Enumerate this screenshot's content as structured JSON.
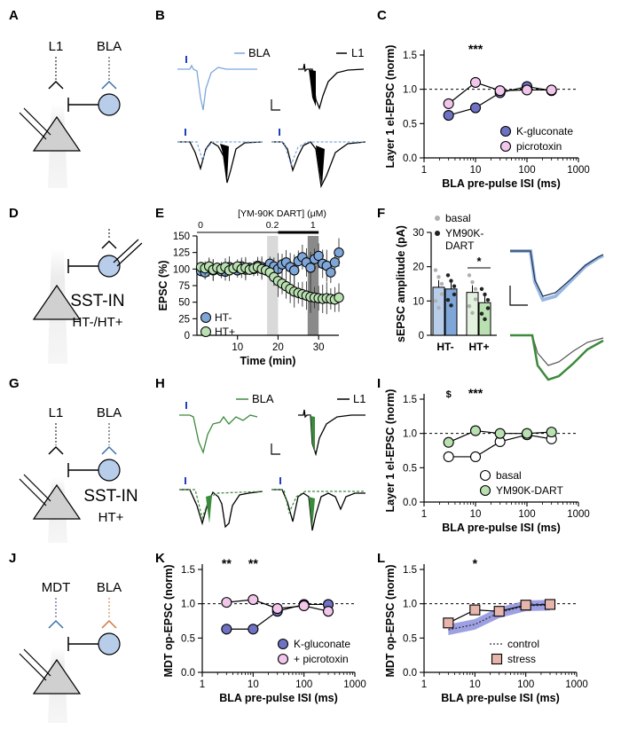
{
  "panels": {
    "A": "A",
    "B": "B",
    "C": "C",
    "D": "D",
    "E": "E",
    "F": "F",
    "G": "G",
    "H": "H",
    "I": "I",
    "J": "J",
    "K": "K",
    "L": "L"
  },
  "schematics": {
    "a": {
      "top_left": "L1",
      "top_right": "BLA"
    },
    "d": {
      "line1": "SST-IN",
      "line2": "HT-/HT+"
    },
    "g": {
      "top_left": "L1",
      "top_right": "BLA",
      "line1": "SST-IN",
      "line2": "HT+"
    },
    "j": {
      "top_left": "MDT",
      "top_right": "BLA"
    }
  },
  "traces": {
    "b": {
      "bla": "BLA",
      "l1": "L1"
    },
    "h": {
      "bla": "BLA",
      "l1": "L1"
    }
  },
  "colors": {
    "blue": "#7ea6d9",
    "lightblue": "#b7cdea",
    "green": "#3c8a3c",
    "lightgreen": "#b9e0b0",
    "darkblue": "#6f72c4",
    "pink": "#f2c6ea",
    "salmon": "#e8b5ad",
    "orange": "#d2743a",
    "gray": "#d9d9d9"
  },
  "chart_data": [
    {
      "id": "C",
      "type": "line",
      "xlabel": "BLA pre-pulse ISI (ms)",
      "ylabel": "Layer 1 el-EPSC (norm)",
      "xscale": "log",
      "xlim": [
        1,
        1000
      ],
      "ylim": [
        0,
        1.5
      ],
      "xticks": [
        "1",
        "10",
        "100",
        "1000"
      ],
      "yticks": [
        "0.0",
        "0.5",
        "1.0",
        "1.5"
      ],
      "reference_line": 1.0,
      "annotations": [
        {
          "text": "***",
          "x": 10
        }
      ],
      "series": [
        {
          "name": "K-gluconate",
          "x": [
            3,
            10,
            30,
            100,
            300
          ],
          "y": [
            0.62,
            0.73,
            0.95,
            1.04,
            0.98
          ]
        },
        {
          "name": "picrotoxin",
          "x": [
            3,
            10,
            30,
            100,
            300
          ],
          "y": [
            0.79,
            1.1,
            0.98,
            0.99,
            0.99
          ]
        }
      ]
    },
    {
      "id": "E",
      "type": "scatter",
      "xlabel": "Time (min)",
      "ylabel": "EPSC (%)",
      "xlim": [
        0,
        35
      ],
      "ylim": [
        0,
        150
      ],
      "xticks": [
        "10",
        "20",
        "30"
      ],
      "yticks": [
        "0",
        "25",
        "50",
        "75",
        "100",
        "125",
        "150"
      ],
      "drug_label": "[YM-90K DART] (μM)",
      "drug_concentrations": [
        "0",
        "0.2",
        "1"
      ],
      "series": [
        {
          "name": "HT-",
          "values": [
            97,
            95,
            102,
            98,
            100,
            97,
            96,
            103,
            101,
            98,
            104,
            99,
            102,
            100,
            105,
            103,
            101,
            108,
            104,
            100,
            107,
            110,
            103,
            98,
            112,
            118,
            110,
            102,
            115,
            120,
            108,
            105,
            95,
            110,
            125
          ]
        },
        {
          "name": "HT+",
          "values": [
            103,
            101,
            104,
            99,
            102,
            100,
            103,
            98,
            101,
            104,
            100,
            102,
            99,
            101,
            103,
            100,
            98,
            95,
            88,
            82,
            78,
            74,
            70,
            66,
            64,
            62,
            60,
            58,
            57,
            56,
            55,
            56,
            55,
            54,
            57
          ]
        }
      ]
    },
    {
      "id": "F",
      "type": "bar",
      "ylabel": "sEPSC amplitude (pA)",
      "ylim": [
        0,
        30
      ],
      "yticks": [
        "0",
        "10",
        "20",
        "30"
      ],
      "categories": [
        "HT-",
        "HT+"
      ],
      "legend": [
        "basal",
        "YM90K-DART"
      ],
      "annotations": [
        {
          "text": "*"
        }
      ],
      "series": [
        {
          "name": "basal",
          "values": [
            14,
            12.5
          ]
        },
        {
          "name": "YM90K-DART",
          "values": [
            13.5,
            9.5
          ]
        }
      ]
    },
    {
      "id": "I",
      "type": "line",
      "xlabel": "BLA pre-pulse ISI (ms)",
      "ylabel": "Layer 1 el-EPSC (norm)",
      "xscale": "log",
      "xlim": [
        1,
        1000
      ],
      "ylim": [
        0,
        1.5
      ],
      "xticks": [
        "1",
        "10",
        "100",
        "1000"
      ],
      "yticks": [
        "0.0",
        "0.5",
        "1.0",
        "1.5"
      ],
      "reference_line": 1.0,
      "annotations": [
        {
          "text": "$",
          "x": 3
        },
        {
          "text": "***",
          "x": 10
        }
      ],
      "series": [
        {
          "name": "basal",
          "x": [
            3,
            10,
            30,
            100,
            300
          ],
          "y": [
            0.66,
            0.66,
            0.88,
            0.98,
            0.92
          ]
        },
        {
          "name": "YM90K-DART",
          "x": [
            3,
            10,
            30,
            100,
            300
          ],
          "y": [
            0.87,
            1.04,
            1.0,
            1.0,
            1.02
          ]
        }
      ]
    },
    {
      "id": "K",
      "type": "line",
      "xlabel": "BLA pre-pulse ISI (ms)",
      "ylabel": "MDT op-EPSC (norm)",
      "xscale": "log",
      "xlim": [
        1,
        1000
      ],
      "ylim": [
        0,
        1.5
      ],
      "xticks": [
        "1",
        "10",
        "100",
        "1000"
      ],
      "yticks": [
        "0.0",
        "0.5",
        "1.0",
        "1.5"
      ],
      "reference_line": 1.0,
      "annotations": [
        {
          "text": "**",
          "x": 3
        },
        {
          "text": "**",
          "x": 10
        }
      ],
      "series": [
        {
          "name": "K-gluconate",
          "x": [
            3,
            10,
            30,
            100,
            300
          ],
          "y": [
            0.63,
            0.63,
            0.89,
            0.99,
            0.99
          ]
        },
        {
          "name": "+ picrotoxin",
          "x": [
            3,
            10,
            30,
            100,
            300
          ],
          "y": [
            1.02,
            1.06,
            0.93,
            0.97,
            0.89
          ]
        }
      ]
    },
    {
      "id": "L",
      "type": "line",
      "xlabel": "BLA pre-pulse ISI (ms)",
      "ylabel": "MDT op-EPSC (norm)",
      "xscale": "log",
      "xlim": [
        1,
        1000
      ],
      "ylim": [
        0,
        1.5
      ],
      "xticks": [
        "1",
        "10",
        "100",
        "1000"
      ],
      "yticks": [
        "0.0",
        "0.5",
        "1.0",
        "1.5"
      ],
      "reference_line": 1.0,
      "annotations": [
        {
          "text": "*",
          "x": 10
        }
      ],
      "series": [
        {
          "name": "control",
          "x": [
            3,
            10,
            30,
            100,
            300
          ],
          "y": [
            0.62,
            0.7,
            0.87,
            0.97,
            0.98
          ]
        },
        {
          "name": "stress",
          "x": [
            3,
            10,
            30,
            100,
            300
          ],
          "y": [
            0.72,
            0.91,
            0.89,
            0.98,
            0.99
          ]
        }
      ]
    }
  ]
}
